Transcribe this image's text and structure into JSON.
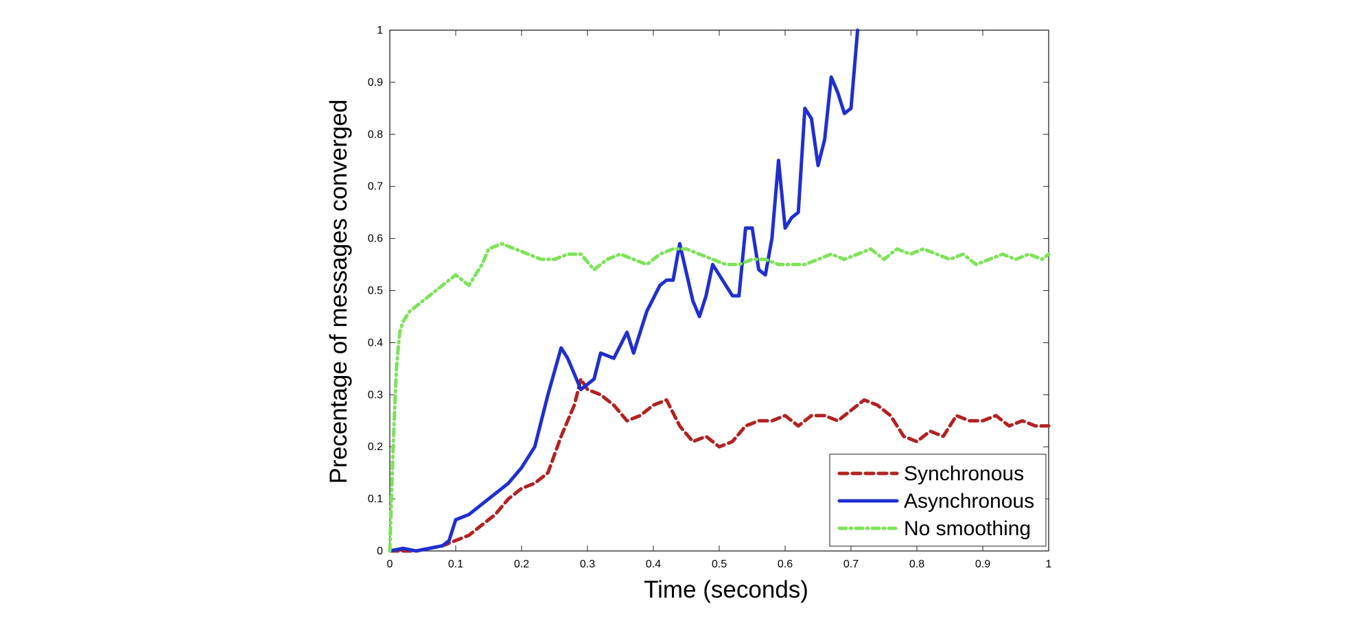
{
  "chart_data": {
    "type": "line",
    "title": "",
    "xlabel": "Time (seconds)",
    "ylabel": "Precentage of messages converged",
    "xlim": [
      0,
      1
    ],
    "ylim": [
      0,
      1
    ],
    "grid": false,
    "legend_position": "bottom-right",
    "x_ticks": [
      0,
      0.1,
      0.2,
      0.3,
      0.4,
      0.5,
      0.6,
      0.7,
      0.8,
      0.9,
      1
    ],
    "x_tick_labels": [
      "0",
      "0.1",
      "0.2",
      "0.3",
      "0.4",
      "0.5",
      "0.6",
      "0.7",
      "0.8",
      "0.9",
      "1"
    ],
    "y_ticks": [
      0,
      0.1,
      0.2,
      0.3,
      0.4,
      0.5,
      0.6,
      0.7,
      0.8,
      0.9,
      1
    ],
    "y_tick_labels": [
      "0",
      "0.1",
      "0.2",
      "0.3",
      "0.4",
      "0.5",
      "0.6",
      "0.7",
      "0.8",
      "0.9",
      "1"
    ],
    "series": [
      {
        "name": "Synchronous",
        "color": "#b22222",
        "style": "dashed",
        "points": [
          [
            0,
            0
          ],
          [
            0.02,
            0
          ],
          [
            0.04,
            0
          ],
          [
            0.06,
            0.005
          ],
          [
            0.08,
            0.01
          ],
          [
            0.1,
            0.02
          ],
          [
            0.12,
            0.03
          ],
          [
            0.14,
            0.05
          ],
          [
            0.16,
            0.07
          ],
          [
            0.18,
            0.1
          ],
          [
            0.2,
            0.12
          ],
          [
            0.22,
            0.13
          ],
          [
            0.24,
            0.15
          ],
          [
            0.26,
            0.22
          ],
          [
            0.28,
            0.28
          ],
          [
            0.29,
            0.33
          ],
          [
            0.3,
            0.31
          ],
          [
            0.32,
            0.3
          ],
          [
            0.34,
            0.28
          ],
          [
            0.36,
            0.25
          ],
          [
            0.38,
            0.26
          ],
          [
            0.4,
            0.28
          ],
          [
            0.42,
            0.29
          ],
          [
            0.44,
            0.24
          ],
          [
            0.46,
            0.21
          ],
          [
            0.48,
            0.22
          ],
          [
            0.5,
            0.2
          ],
          [
            0.52,
            0.21
          ],
          [
            0.54,
            0.24
          ],
          [
            0.56,
            0.25
          ],
          [
            0.58,
            0.25
          ],
          [
            0.6,
            0.26
          ],
          [
            0.62,
            0.24
          ],
          [
            0.64,
            0.26
          ],
          [
            0.66,
            0.26
          ],
          [
            0.68,
            0.25
          ],
          [
            0.7,
            0.27
          ],
          [
            0.72,
            0.29
          ],
          [
            0.74,
            0.28
          ],
          [
            0.76,
            0.26
          ],
          [
            0.78,
            0.22
          ],
          [
            0.8,
            0.21
          ],
          [
            0.82,
            0.23
          ],
          [
            0.84,
            0.22
          ],
          [
            0.86,
            0.26
          ],
          [
            0.88,
            0.25
          ],
          [
            0.9,
            0.25
          ],
          [
            0.92,
            0.26
          ],
          [
            0.94,
            0.24
          ],
          [
            0.96,
            0.25
          ],
          [
            0.98,
            0.24
          ],
          [
            1.0,
            0.24
          ]
        ]
      },
      {
        "name": "Asynchronous",
        "color": "#1f2fd1",
        "style": "solid",
        "points": [
          [
            0,
            0
          ],
          [
            0.02,
            0.005
          ],
          [
            0.04,
            0
          ],
          [
            0.06,
            0.005
          ],
          [
            0.08,
            0.01
          ],
          [
            0.09,
            0.02
          ],
          [
            0.1,
            0.06
          ],
          [
            0.12,
            0.07
          ],
          [
            0.14,
            0.09
          ],
          [
            0.16,
            0.11
          ],
          [
            0.18,
            0.13
          ],
          [
            0.2,
            0.16
          ],
          [
            0.22,
            0.2
          ],
          [
            0.24,
            0.3
          ],
          [
            0.26,
            0.39
          ],
          [
            0.27,
            0.37
          ],
          [
            0.29,
            0.31
          ],
          [
            0.31,
            0.33
          ],
          [
            0.32,
            0.38
          ],
          [
            0.34,
            0.37
          ],
          [
            0.36,
            0.42
          ],
          [
            0.37,
            0.38
          ],
          [
            0.39,
            0.46
          ],
          [
            0.41,
            0.51
          ],
          [
            0.42,
            0.52
          ],
          [
            0.43,
            0.52
          ],
          [
            0.44,
            0.59
          ],
          [
            0.46,
            0.48
          ],
          [
            0.47,
            0.45
          ],
          [
            0.48,
            0.49
          ],
          [
            0.49,
            0.55
          ],
          [
            0.5,
            0.53
          ],
          [
            0.52,
            0.49
          ],
          [
            0.53,
            0.49
          ],
          [
            0.54,
            0.62
          ],
          [
            0.55,
            0.62
          ],
          [
            0.56,
            0.54
          ],
          [
            0.57,
            0.53
          ],
          [
            0.58,
            0.6
          ],
          [
            0.59,
            0.75
          ],
          [
            0.6,
            0.62
          ],
          [
            0.61,
            0.64
          ],
          [
            0.62,
            0.65
          ],
          [
            0.63,
            0.85
          ],
          [
            0.64,
            0.83
          ],
          [
            0.65,
            0.74
          ],
          [
            0.66,
            0.79
          ],
          [
            0.67,
            0.91
          ],
          [
            0.68,
            0.88
          ],
          [
            0.69,
            0.84
          ],
          [
            0.7,
            0.85
          ],
          [
            0.71,
            1.0
          ]
        ]
      },
      {
        "name": "No smoothing",
        "color": "#7ee35a",
        "style": "dash-dot",
        "points": [
          [
            0,
            0
          ],
          [
            0.005,
            0.2
          ],
          [
            0.01,
            0.35
          ],
          [
            0.015,
            0.42
          ],
          [
            0.02,
            0.44
          ],
          [
            0.03,
            0.46
          ],
          [
            0.05,
            0.48
          ],
          [
            0.07,
            0.5
          ],
          [
            0.1,
            0.53
          ],
          [
            0.12,
            0.51
          ],
          [
            0.14,
            0.55
          ],
          [
            0.15,
            0.58
          ],
          [
            0.17,
            0.59
          ],
          [
            0.19,
            0.58
          ],
          [
            0.21,
            0.57
          ],
          [
            0.23,
            0.56
          ],
          [
            0.25,
            0.56
          ],
          [
            0.27,
            0.57
          ],
          [
            0.29,
            0.57
          ],
          [
            0.31,
            0.54
          ],
          [
            0.33,
            0.56
          ],
          [
            0.35,
            0.57
          ],
          [
            0.37,
            0.56
          ],
          [
            0.39,
            0.55
          ],
          [
            0.41,
            0.57
          ],
          [
            0.43,
            0.58
          ],
          [
            0.45,
            0.58
          ],
          [
            0.47,
            0.57
          ],
          [
            0.49,
            0.56
          ],
          [
            0.51,
            0.55
          ],
          [
            0.53,
            0.55
          ],
          [
            0.55,
            0.56
          ],
          [
            0.57,
            0.56
          ],
          [
            0.59,
            0.55
          ],
          [
            0.61,
            0.55
          ],
          [
            0.63,
            0.55
          ],
          [
            0.65,
            0.56
          ],
          [
            0.67,
            0.57
          ],
          [
            0.69,
            0.56
          ],
          [
            0.71,
            0.57
          ],
          [
            0.73,
            0.58
          ],
          [
            0.75,
            0.56
          ],
          [
            0.77,
            0.58
          ],
          [
            0.79,
            0.57
          ],
          [
            0.81,
            0.58
          ],
          [
            0.83,
            0.57
          ],
          [
            0.85,
            0.56
          ],
          [
            0.87,
            0.57
          ],
          [
            0.89,
            0.55
          ],
          [
            0.91,
            0.56
          ],
          [
            0.93,
            0.57
          ],
          [
            0.95,
            0.56
          ],
          [
            0.97,
            0.57
          ],
          [
            0.99,
            0.56
          ],
          [
            1.0,
            0.57
          ]
        ]
      }
    ]
  }
}
